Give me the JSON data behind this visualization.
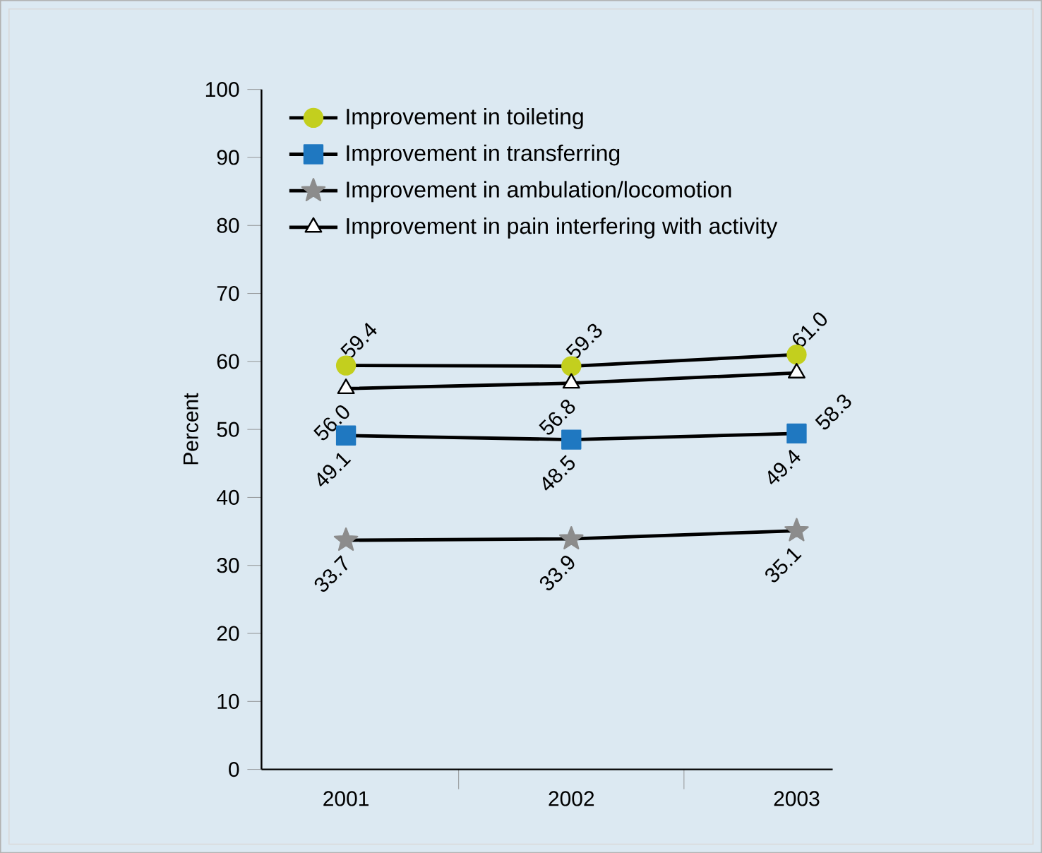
{
  "chart_data": {
    "type": "line",
    "categories": [
      "2001",
      "2002",
      "2003"
    ],
    "ylabel": "Percent",
    "ylim": [
      0,
      100
    ],
    "yticks": [
      0,
      10,
      20,
      30,
      40,
      50,
      60,
      70,
      80,
      90,
      100
    ],
    "legend": "top left",
    "grid": false,
    "series": [
      {
        "name": "Improvement in toileting",
        "color": "#c3cf1e",
        "marker": "circle",
        "values": [
          59.4,
          59.3,
          61.0
        ],
        "value_labels": [
          "59.4",
          "59.3",
          "61.0"
        ]
      },
      {
        "name": "Improvement in transferring",
        "color": "#1f78c1",
        "marker": "square",
        "values": [
          49.1,
          48.5,
          49.4
        ],
        "value_labels": [
          "49.1",
          "48.5",
          "49.4"
        ]
      },
      {
        "name": "Improvement in ambulation/locomotion",
        "color": "#8c8c8c",
        "marker": "star",
        "values": [
          33.7,
          33.9,
          35.1
        ],
        "value_labels": [
          "33.7",
          "33.9",
          "35.1"
        ]
      },
      {
        "name": "Improvement in pain interfering with activity",
        "color": "#ffffff",
        "marker": "triangle",
        "values": [
          56.0,
          56.8,
          58.3
        ],
        "value_labels": [
          "56.0",
          "56.8",
          "58.3"
        ]
      }
    ]
  }
}
